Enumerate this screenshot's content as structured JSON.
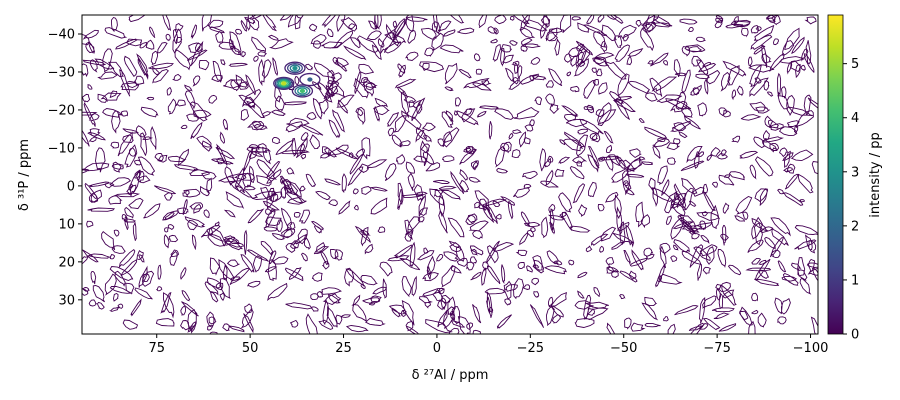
{
  "chart_data": {
    "type": "contour",
    "xlabel": "δ ²⁷Al / ppm",
    "ylabel": "δ ³¹P / ppm",
    "colorbar_label": "intensity / pp",
    "xlim": [
      95,
      -102
    ],
    "ylim": [
      39,
      -45
    ],
    "x_ticks": [
      75,
      50,
      25,
      0,
      -25,
      -50,
      -75,
      -100
    ],
    "x_tick_labels": [
      "75",
      "50",
      "25",
      "0",
      "−25",
      "−50",
      "−75",
      "−100"
    ],
    "y_ticks": [
      -40,
      -30,
      -20,
      -10,
      0,
      10,
      20,
      30
    ],
    "y_tick_labels": [
      "−40",
      "−30",
      "−20",
      "−10",
      "0",
      "10",
      "20",
      "30"
    ],
    "colorbar_range": [
      0,
      5.9
    ],
    "colorbar_ticks": [
      0,
      1,
      2,
      3,
      4,
      5
    ],
    "colorbar_tick_labels": [
      "0",
      "1",
      "2",
      "3",
      "4",
      "5"
    ],
    "colormap": "viridis",
    "noise_contour_color": "#440154",
    "peaks": [
      {
        "x": 41,
        "y": -27,
        "intensity": 5.6
      },
      {
        "x": 36,
        "y": -25,
        "intensity": 4.4
      },
      {
        "x": 38,
        "y": -31,
        "intensity": 3.6
      },
      {
        "x": 34,
        "y": -28,
        "intensity": 2.2
      }
    ]
  }
}
